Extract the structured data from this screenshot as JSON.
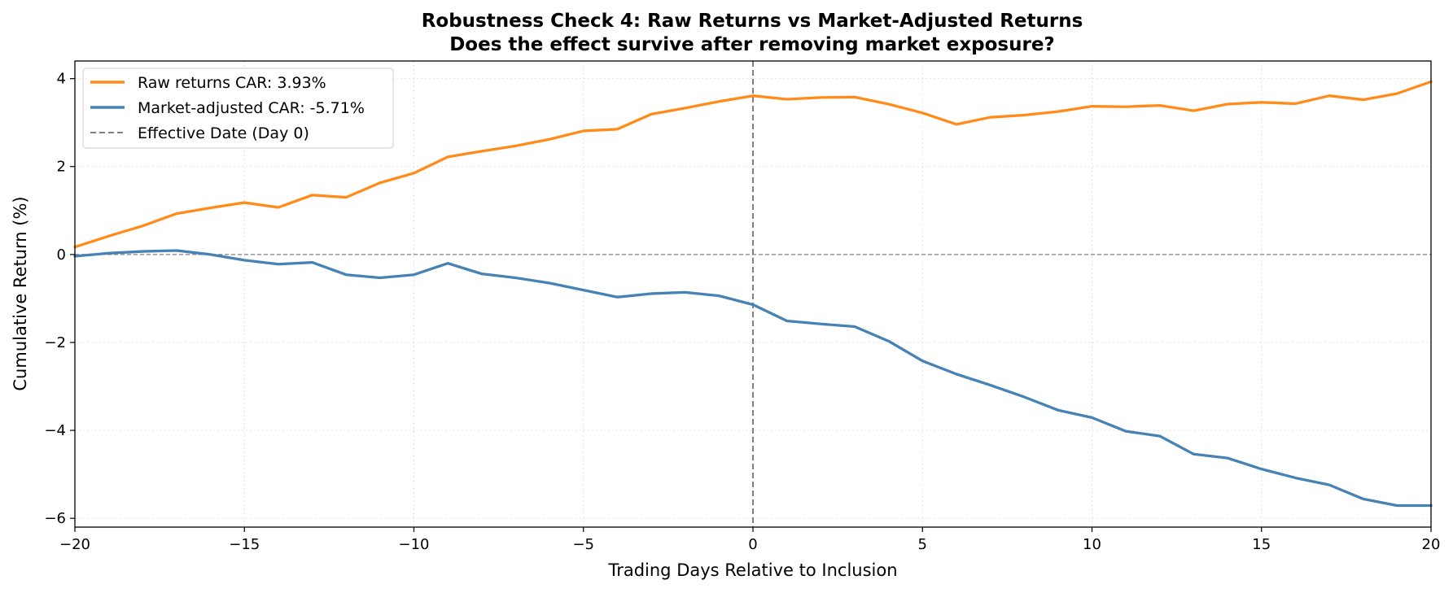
{
  "chart_data": {
    "type": "line",
    "title": "Robustness Check 4: Raw Returns vs Market-Adjusted Returns",
    "subtitle": "Does the effect survive after removing market exposure?",
    "xlabel": "Trading Days Relative to Inclusion",
    "ylabel": "Cumulative Return (%)",
    "xlim": [
      -20,
      20
    ],
    "ylim": [
      -6.2,
      4.4
    ],
    "xticks": [
      -20,
      -15,
      -10,
      -5,
      0,
      5,
      10,
      15,
      20
    ],
    "xtick_labels": [
      "−20",
      "−15",
      "−10",
      "−5",
      "0",
      "5",
      "10",
      "15",
      "20"
    ],
    "yticks": [
      -6,
      -4,
      -2,
      0,
      2,
      4
    ],
    "ytick_labels": [
      "−6",
      "−4",
      "−2",
      "0",
      "2",
      "4"
    ],
    "grid": true,
    "legend_position": "top-left",
    "x": [
      -20,
      -19,
      -18,
      -17,
      -16,
      -15,
      -14,
      -13,
      -12,
      -11,
      -10,
      -9,
      -8,
      -7,
      -6,
      -5,
      -4,
      -3,
      -2,
      -1,
      0,
      1,
      2,
      3,
      4,
      5,
      6,
      7,
      8,
      9,
      10,
      11,
      12,
      13,
      14,
      15,
      16,
      17,
      18,
      19,
      20
    ],
    "series": [
      {
        "name": "Raw returns CAR: 3.93%",
        "color": "#ff8c1a",
        "values": [
          0.17,
          0.42,
          0.65,
          0.93,
          1.06,
          1.18,
          1.07,
          1.35,
          1.3,
          1.63,
          1.85,
          2.22,
          2.35,
          2.47,
          2.62,
          2.81,
          2.85,
          3.19,
          3.33,
          3.48,
          3.61,
          3.53,
          3.57,
          3.58,
          3.42,
          3.22,
          2.96,
          3.12,
          3.17,
          3.25,
          3.37,
          3.36,
          3.39,
          3.27,
          3.42,
          3.46,
          3.43,
          3.61,
          3.52,
          3.66,
          3.93
        ]
      },
      {
        "name": "Market-adjusted CAR: -5.71%",
        "color": "#4682b4",
        "values": [
          -0.04,
          0.03,
          0.07,
          0.09,
          0.0,
          -0.13,
          -0.22,
          -0.18,
          -0.46,
          -0.53,
          -0.46,
          -0.2,
          -0.44,
          -0.53,
          -0.65,
          -0.81,
          -0.97,
          -0.89,
          -0.86,
          -0.94,
          -1.14,
          -1.51,
          -1.58,
          -1.64,
          -1.97,
          -2.42,
          -2.72,
          -2.97,
          -3.24,
          -3.54,
          -3.71,
          -4.02,
          -4.13,
          -4.54,
          -4.63,
          -4.88,
          -5.08,
          -5.24,
          -5.56,
          -5.71,
          -5.71
        ]
      }
    ],
    "reference_lines": [
      {
        "name": "Effective Date (Day 0)",
        "orientation": "vertical",
        "value": 0,
        "color": "#808080"
      },
      {
        "orientation": "horizontal",
        "value": 0,
        "color": "#808080"
      }
    ]
  }
}
